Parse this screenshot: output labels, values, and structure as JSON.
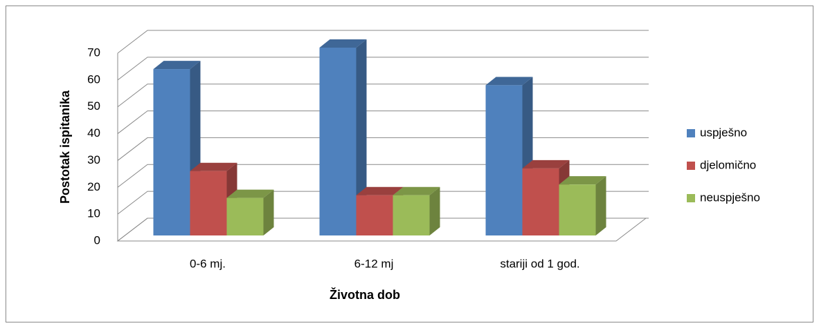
{
  "chart_data": {
    "type": "bar3d",
    "categories": [
      "0-6 mj.",
      "6-12 mj",
      "stariji od 1 god."
    ],
    "series": [
      {
        "name": "uspješno",
        "color": "#4f81bd",
        "values": [
          62,
          70,
          56
        ]
      },
      {
        "name": "djelomično",
        "color": "#c0504d",
        "values": [
          24,
          15,
          25
        ]
      },
      {
        "name": "neuspješno",
        "color": "#9bbb59",
        "values": [
          14,
          15,
          19
        ]
      }
    ],
    "xlabel": "Životna dob",
    "ylabel": "Postotak ispitanika",
    "ylim": [
      0,
      70
    ],
    "yticks": [
      0,
      10,
      20,
      30,
      40,
      50,
      60,
      70
    ],
    "grid": true,
    "legend": "right"
  }
}
